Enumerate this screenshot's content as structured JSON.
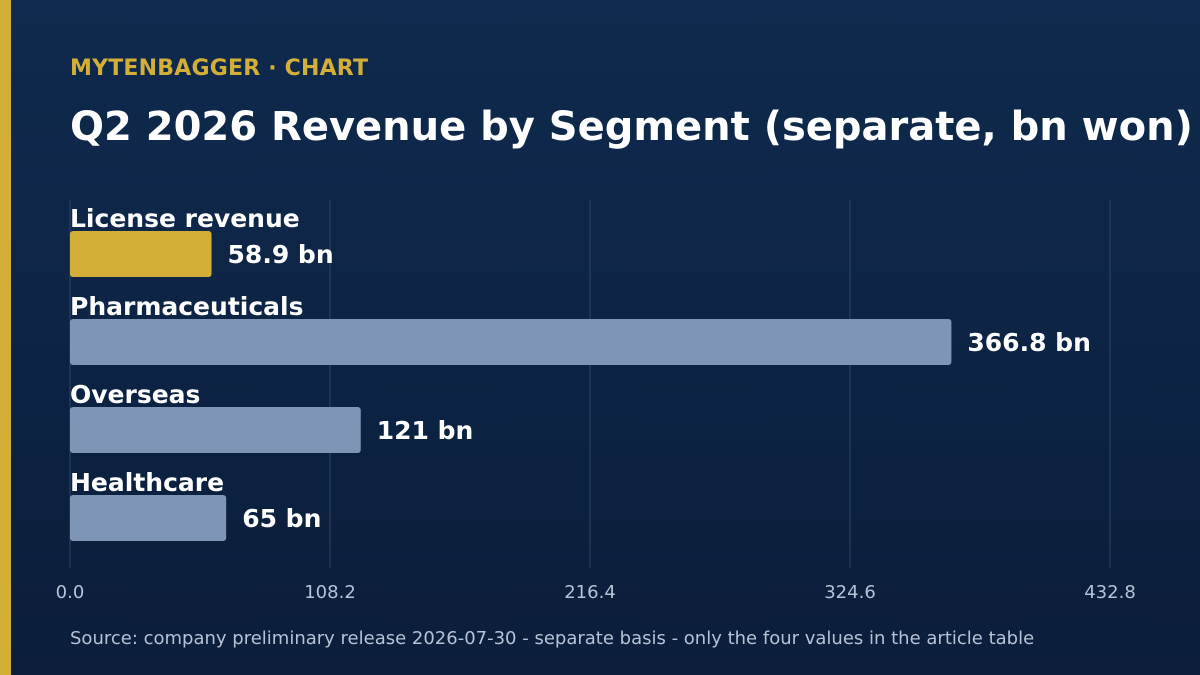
{
  "header": {
    "kicker": "MYTENBAGGER · CHART",
    "title": "Q2 2026 Revenue by Segment (separate, bn won)"
  },
  "footer": {
    "source": "Source: company preliminary release 2026-07-30 - separate basis - only the four values in the article table"
  },
  "colors": {
    "highlight": "#d4af37",
    "bar": "#7f95b6",
    "grid": "#2e4668",
    "tick": "#b6c2d6",
    "label": "#ffffff"
  },
  "chart_data": {
    "type": "bar",
    "orientation": "horizontal",
    "categories": [
      "License revenue",
      "Pharmaceuticals",
      "Overseas",
      "Healthcare"
    ],
    "values": [
      58.9,
      366.8,
      121,
      65
    ],
    "value_labels": [
      "58.9 bn",
      "366.8 bn",
      "121 bn",
      "65 bn"
    ],
    "highlight_index": 0,
    "title": "Q2 2026 Revenue by Segment (separate, bn won)",
    "xlabel": "",
    "ylabel": "",
    "xlim": [
      0,
      432.8
    ],
    "xticks": [
      "0.0",
      "108.2",
      "216.4",
      "324.6",
      "432.8"
    ],
    "grid": true
  }
}
